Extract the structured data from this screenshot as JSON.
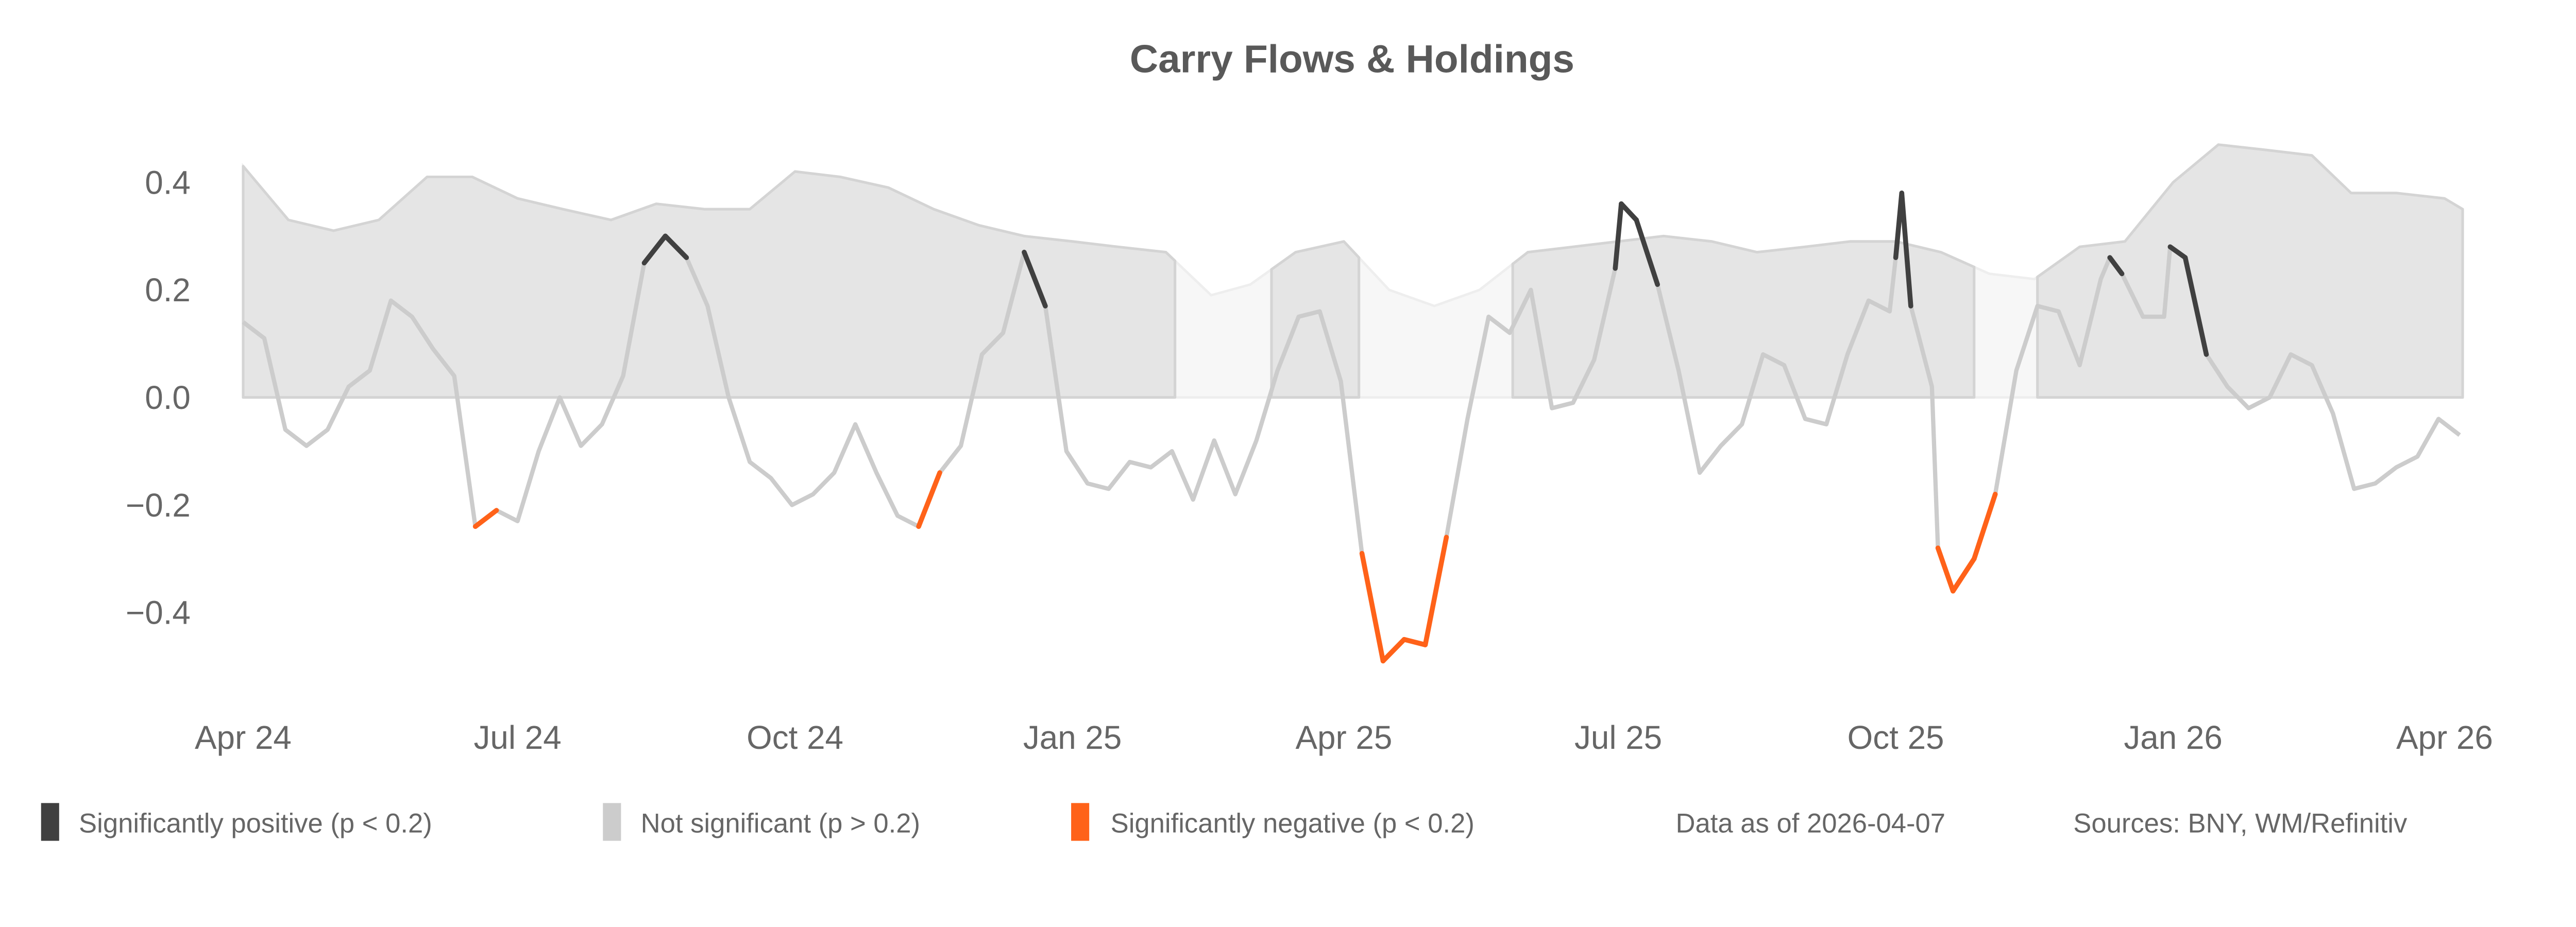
{
  "chart_data": {
    "type": "line",
    "title": "Carry Flows & Holdings",
    "xlabel": "",
    "ylabel": "",
    "ylim": [
      -0.55,
      0.5
    ],
    "xlim": [
      "2024-04-01",
      "2026-04-07"
    ],
    "grid": false,
    "y_ticks": [
      {
        "value": 0.4,
        "label": "0.4"
      },
      {
        "value": 0.2,
        "label": "0.2"
      },
      {
        "value": 0.0,
        "label": "0.0"
      },
      {
        "value": -0.2,
        "label": "−0.2"
      },
      {
        "value": -0.4,
        "label": "−0.4"
      }
    ],
    "x_ticks": [
      {
        "date": "2024-04-01",
        "label": "Apr 24"
      },
      {
        "date": "2024-07-01",
        "label": "Jul 24"
      },
      {
        "date": "2024-10-01",
        "label": "Oct 24"
      },
      {
        "date": "2025-01-01",
        "label": "Jan 25"
      },
      {
        "date": "2025-04-01",
        "label": "Apr 25"
      },
      {
        "date": "2025-07-01",
        "label": "Jul 25"
      },
      {
        "date": "2025-10-01",
        "label": "Oct 25"
      },
      {
        "date": "2026-01-01",
        "label": "Jan 26"
      },
      {
        "date": "2026-04-01",
        "label": "Apr 26"
      }
    ],
    "colors": {
      "significantly_positive": "#404040",
      "not_significant": "#cccccc",
      "significantly_negative": "#ff6219",
      "holdings_fill": "#e5e5e5",
      "holdings_line": "#d4d4d4",
      "holdings_fill_faded": "#f7f7f7",
      "holdings_line_faded": "#eeeeee"
    },
    "holdings": {
      "dates": [
        "2024-04-01",
        "2024-04-16",
        "2024-05-01",
        "2024-05-16",
        "2024-06-01",
        "2024-06-16",
        "2024-07-01",
        "2024-07-16",
        "2024-08-01",
        "2024-08-16",
        "2024-09-01",
        "2024-09-16",
        "2024-10-01",
        "2024-10-16",
        "2024-11-01",
        "2024-11-16",
        "2024-12-01",
        "2024-12-16",
        "2025-01-01",
        "2025-01-16",
        "2025-02-01",
        "2025-02-16",
        "2025-03-01",
        "2025-03-16",
        "2025-04-01",
        "2025-04-16",
        "2025-05-01",
        "2025-05-16",
        "2025-06-01",
        "2025-06-16",
        "2025-07-01",
        "2025-07-16",
        "2025-08-01",
        "2025-08-16",
        "2025-09-01",
        "2025-09-16",
        "2025-10-01",
        "2025-10-16",
        "2025-11-01",
        "2025-11-16",
        "2025-12-01",
        "2025-12-16",
        "2026-01-01",
        "2026-01-16",
        "2026-02-01",
        "2026-02-16",
        "2026-03-01",
        "2026-03-16",
        "2026-04-01",
        "2026-04-07"
      ],
      "values": [
        0.43,
        0.33,
        0.31,
        0.33,
        0.41,
        0.41,
        0.37,
        0.35,
        0.33,
        0.36,
        0.35,
        0.35,
        0.42,
        0.41,
        0.39,
        0.35,
        0.32,
        0.3,
        0.29,
        0.28,
        0.27,
        0.19,
        0.21,
        0.27,
        0.29,
        0.2,
        0.17,
        0.2,
        0.27,
        0.28,
        0.29,
        0.3,
        0.29,
        0.27,
        0.28,
        0.29,
        0.29,
        0.27,
        0.23,
        0.22,
        0.28,
        0.29,
        0.4,
        0.47,
        0.46,
        0.45,
        0.38,
        0.38,
        0.37,
        0.35
      ],
      "highlighted_periods": [
        [
          "2024-04-01",
          "2025-02-04"
        ],
        [
          "2025-03-08",
          "2025-04-06"
        ],
        [
          "2025-05-27",
          "2025-10-27"
        ],
        [
          "2025-11-17",
          "2026-04-07"
        ]
      ]
    },
    "flows": {
      "points": [
        [
          "2024-04-01",
          0.14,
          "ns"
        ],
        [
          "2024-04-08",
          0.11,
          "ns"
        ],
        [
          "2024-04-15",
          -0.06,
          "ns"
        ],
        [
          "2024-04-22",
          -0.09,
          "ns"
        ],
        [
          "2024-04-29",
          -0.06,
          "ns"
        ],
        [
          "2024-05-06",
          0.02,
          "ns"
        ],
        [
          "2024-05-13",
          0.05,
          "ns"
        ],
        [
          "2024-05-20",
          0.18,
          "ns"
        ],
        [
          "2024-05-27",
          0.15,
          "ns"
        ],
        [
          "2024-06-03",
          0.09,
          "ns"
        ],
        [
          "2024-06-10",
          0.04,
          "ns"
        ],
        [
          "2024-06-17",
          -0.24,
          "neg"
        ],
        [
          "2024-06-24",
          -0.21,
          "ns"
        ],
        [
          "2024-07-01",
          -0.23,
          "ns"
        ],
        [
          "2024-07-08",
          -0.1,
          "ns"
        ],
        [
          "2024-07-15",
          0.0,
          "ns"
        ],
        [
          "2024-07-22",
          -0.09,
          "ns"
        ],
        [
          "2024-07-29",
          -0.05,
          "ns"
        ],
        [
          "2024-08-05",
          0.04,
          "ns"
        ],
        [
          "2024-08-12",
          0.25,
          "pos"
        ],
        [
          "2024-08-19",
          0.3,
          "pos"
        ],
        [
          "2024-08-26",
          0.26,
          "ns"
        ],
        [
          "2024-09-02",
          0.17,
          "ns"
        ],
        [
          "2024-09-09",
          0.0,
          "ns"
        ],
        [
          "2024-09-16",
          -0.12,
          "ns"
        ],
        [
          "2024-09-23",
          -0.15,
          "ns"
        ],
        [
          "2024-09-30",
          -0.2,
          "ns"
        ],
        [
          "2024-10-07",
          -0.18,
          "ns"
        ],
        [
          "2024-10-14",
          -0.14,
          "ns"
        ],
        [
          "2024-10-21",
          -0.05,
          "ns"
        ],
        [
          "2024-10-28",
          -0.14,
          "ns"
        ],
        [
          "2024-11-04",
          -0.22,
          "ns"
        ],
        [
          "2024-11-11",
          -0.24,
          "neg"
        ],
        [
          "2024-11-18",
          -0.14,
          "ns"
        ],
        [
          "2024-11-25",
          -0.09,
          "ns"
        ],
        [
          "2024-12-02",
          0.08,
          "ns"
        ],
        [
          "2024-12-09",
          0.12,
          "ns"
        ],
        [
          "2024-12-16",
          0.27,
          "pos"
        ],
        [
          "2024-12-23",
          0.17,
          "ns"
        ],
        [
          "2024-12-30",
          -0.1,
          "ns"
        ],
        [
          "2025-01-06",
          -0.16,
          "ns"
        ],
        [
          "2025-01-13",
          -0.17,
          "ns"
        ],
        [
          "2025-01-20",
          -0.12,
          "ns"
        ],
        [
          "2025-01-27",
          -0.13,
          "ns"
        ],
        [
          "2025-02-03",
          -0.1,
          "ns"
        ],
        [
          "2025-02-10",
          -0.19,
          "ns"
        ],
        [
          "2025-02-17",
          -0.08,
          "ns"
        ],
        [
          "2025-02-24",
          -0.18,
          "ns"
        ],
        [
          "2025-03-03",
          -0.08,
          "ns"
        ],
        [
          "2025-03-10",
          0.05,
          "ns"
        ],
        [
          "2025-03-17",
          0.15,
          "ns"
        ],
        [
          "2025-03-24",
          0.16,
          "ns"
        ],
        [
          "2025-03-31",
          0.03,
          "ns"
        ],
        [
          "2025-04-07",
          -0.29,
          "neg"
        ],
        [
          "2025-04-14",
          -0.49,
          "neg"
        ],
        [
          "2025-04-21",
          -0.45,
          "neg"
        ],
        [
          "2025-04-28",
          -0.46,
          "neg"
        ],
        [
          "2025-05-05",
          -0.26,
          "ns"
        ],
        [
          "2025-05-12",
          -0.04,
          "ns"
        ],
        [
          "2025-05-19",
          0.15,
          "ns"
        ],
        [
          "2025-05-26",
          0.12,
          "ns"
        ],
        [
          "2025-06-02",
          0.2,
          "ns"
        ],
        [
          "2025-06-09",
          -0.02,
          "ns"
        ],
        [
          "2025-06-16",
          -0.01,
          "ns"
        ],
        [
          "2025-06-23",
          0.07,
          "ns"
        ],
        [
          "2025-06-30",
          0.24,
          "pos"
        ],
        [
          "2025-07-02",
          0.36,
          "pos"
        ],
        [
          "2025-07-07",
          0.33,
          "pos"
        ],
        [
          "2025-07-14",
          0.21,
          "ns"
        ],
        [
          "2025-07-21",
          0.05,
          "ns"
        ],
        [
          "2025-07-28",
          -0.14,
          "ns"
        ],
        [
          "2025-08-04",
          -0.09,
          "ns"
        ],
        [
          "2025-08-11",
          -0.05,
          "ns"
        ],
        [
          "2025-08-18",
          0.08,
          "ns"
        ],
        [
          "2025-08-25",
          0.06,
          "ns"
        ],
        [
          "2025-09-01",
          -0.04,
          "ns"
        ],
        [
          "2025-09-08",
          -0.05,
          "ns"
        ],
        [
          "2025-09-15",
          0.08,
          "ns"
        ],
        [
          "2025-09-22",
          0.18,
          "ns"
        ],
        [
          "2025-09-29",
          0.16,
          "ns"
        ],
        [
          "2025-10-01",
          0.26,
          "pos"
        ],
        [
          "2025-10-03",
          0.38,
          "pos"
        ],
        [
          "2025-10-06",
          0.17,
          "ns"
        ],
        [
          "2025-10-13",
          0.02,
          "ns"
        ],
        [
          "2025-10-15",
          -0.28,
          "neg"
        ],
        [
          "2025-10-20",
          -0.36,
          "neg"
        ],
        [
          "2025-10-27",
          -0.3,
          "neg"
        ],
        [
          "2025-11-03",
          -0.18,
          "ns"
        ],
        [
          "2025-11-10",
          0.05,
          "ns"
        ],
        [
          "2025-11-17",
          0.17,
          "ns"
        ],
        [
          "2025-11-24",
          0.16,
          "ns"
        ],
        [
          "2025-12-01",
          0.06,
          "ns"
        ],
        [
          "2025-12-08",
          0.22,
          "ns"
        ],
        [
          "2025-12-11",
          0.26,
          "pos"
        ],
        [
          "2025-12-15",
          0.23,
          "ns"
        ],
        [
          "2025-12-22",
          0.15,
          "ns"
        ],
        [
          "2025-12-29",
          0.15,
          "ns"
        ],
        [
          "2025-12-31",
          0.28,
          "pos"
        ],
        [
          "2026-01-05",
          0.26,
          "pos"
        ],
        [
          "2026-01-12",
          0.08,
          "ns"
        ],
        [
          "2026-01-19",
          0.02,
          "ns"
        ],
        [
          "2026-01-26",
          -0.02,
          "ns"
        ],
        [
          "2026-02-02",
          0.0,
          "ns"
        ],
        [
          "2026-02-09",
          0.08,
          "ns"
        ],
        [
          "2026-02-16",
          0.06,
          "ns"
        ],
        [
          "2026-02-23",
          -0.03,
          "ns"
        ],
        [
          "2026-03-02",
          -0.17,
          "ns"
        ],
        [
          "2026-03-09",
          -0.16,
          "ns"
        ],
        [
          "2026-03-16",
          -0.13,
          "ns"
        ],
        [
          "2026-03-23",
          -0.11,
          "ns"
        ],
        [
          "2026-03-30",
          -0.04,
          "ns"
        ],
        [
          "2026-04-06",
          -0.07,
          "ns"
        ]
      ]
    },
    "legend": {
      "placement": "bottom",
      "items": [
        {
          "key": "pos",
          "label": "Significantly positive (p < 0.2)"
        },
        {
          "key": "ns",
          "label": "Not significant (p > 0.2)"
        },
        {
          "key": "neg",
          "label": "Significantly negative (p < 0.2)"
        }
      ]
    },
    "annotations": {
      "data_as_of": "Data as of 2026-04-07",
      "sources": "Sources:  BNY, WM/Refinitiv"
    }
  }
}
